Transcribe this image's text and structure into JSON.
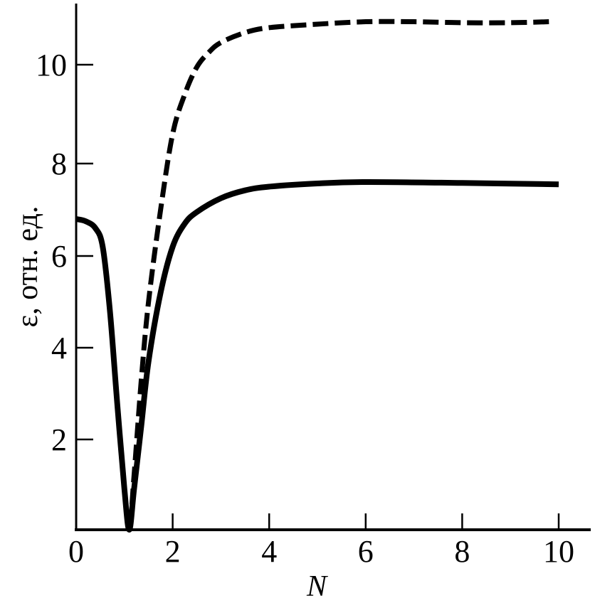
{
  "chart_data": {
    "type": "line",
    "title": "",
    "xlabel": "N",
    "ylabel": "ε, отн. ед.",
    "xlim": [
      0,
      10.6
    ],
    "ylim": [
      0,
      11.3
    ],
    "grid": false,
    "x_ticks": [
      "0",
      "2",
      "4",
      "6",
      "8",
      "10"
    ],
    "y_ticks": [
      "2",
      "4",
      "6",
      "8",
      "10"
    ],
    "series": [
      {
        "style": "solid",
        "color": "#000000",
        "x": [
          0,
          0.2,
          0.4,
          0.55,
          0.7,
          0.85,
          1.0,
          1.1,
          1.2,
          1.35,
          1.5,
          1.75,
          2.0,
          2.25,
          2.5,
          3.0,
          3.5,
          4.0,
          5.0,
          6.0,
          8.0,
          10.0
        ],
        "y": [
          6.8,
          6.75,
          6.6,
          6.2,
          4.8,
          2.8,
          0.9,
          0.0,
          0.9,
          2.3,
          3.7,
          5.2,
          6.2,
          6.7,
          6.95,
          7.25,
          7.42,
          7.5,
          7.57,
          7.6,
          7.58,
          7.55
        ]
      },
      {
        "style": "dashed",
        "color": "#000000",
        "x": [
          0,
          0.2,
          0.4,
          0.55,
          0.7,
          0.85,
          1.0,
          1.1,
          1.2,
          1.35,
          1.5,
          1.75,
          2.0,
          2.25,
          2.5,
          2.75,
          3.0,
          3.5,
          4.0,
          5.0,
          6.0,
          7.0,
          8.0,
          9.0,
          9.8
        ],
        "y": [
          6.8,
          6.75,
          6.6,
          6.2,
          4.8,
          2.8,
          0.9,
          0.0,
          1.2,
          3.3,
          5.0,
          7.0,
          8.6,
          9.4,
          9.95,
          10.25,
          10.45,
          10.65,
          10.75,
          10.82,
          10.87,
          10.87,
          10.85,
          10.85,
          10.87
        ]
      }
    ]
  }
}
